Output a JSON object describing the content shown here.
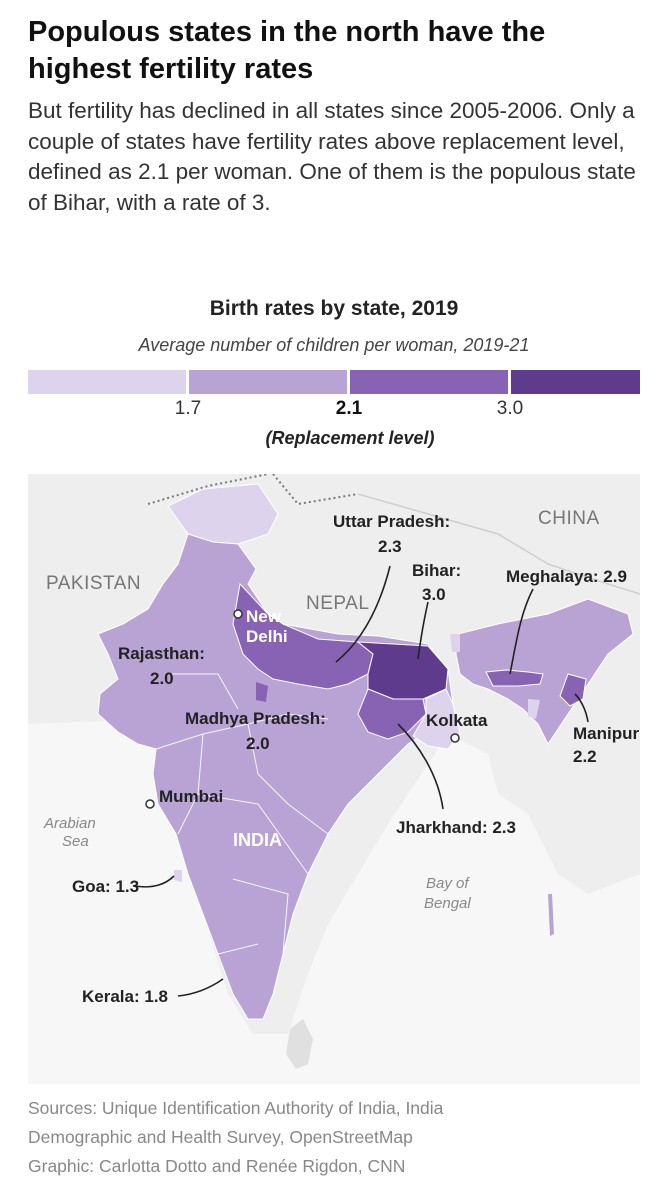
{
  "headline": "Populous states in the north have the highest fertility rates",
  "dek": "But fertility has declined in all states since 2005-2006. Only a couple of states have fertility rates above replacement level, defined as 2.1 per woman. One of them is the populous state of Bihar, with a rate of 3.",
  "legend": {
    "title": "Birth rates by state, 2019",
    "subtitle": "Average number of children per woman, 2019-21",
    "ticks": [
      "1.7",
      "2.1",
      "3.0"
    ],
    "replacement_note": "(Replacement level)",
    "colors": [
      "#ddd3ec",
      "#b8a3d4",
      "#8862b3",
      "#5e3b8c"
    ]
  },
  "map": {
    "countries": {
      "pakistan": "PAKISTAN",
      "china": "CHINA",
      "nepal": "NEPAL",
      "india": "INDIA"
    },
    "water": {
      "arabian_1": "Arabian",
      "arabian_2": "Sea",
      "bay_1": "Bay of",
      "bay_2": "Bengal"
    },
    "cities": {
      "new_delhi_1": "New",
      "new_delhi_2": "Delhi",
      "mumbai": "Mumbai",
      "kolkata": "Kolkata"
    },
    "states": {
      "uttar_pradesh": {
        "name": "Uttar Pradesh:",
        "value": "2.3"
      },
      "bihar": {
        "name": "Bihar:",
        "value": "3.0"
      },
      "meghalaya": {
        "label": "Meghalaya: 2.9"
      },
      "rajasthan": {
        "name": "Rajasthan:",
        "value": "2.0"
      },
      "madhya_pradesh": {
        "name": "Madhya Pradesh:",
        "value": "2.0"
      },
      "manipur": {
        "name": "Manipur",
        "value": "2.2"
      },
      "jharkhand": {
        "label": "Jharkhand: 2.3"
      },
      "goa": {
        "label": "Goa: 1.3"
      },
      "kerala": {
        "label": "Kerala: 1.8"
      }
    }
  },
  "sources": {
    "line1": "Sources: Unique Identification Authority of India, India",
    "line2": "Demographic and Health Survey, OpenStreetMap",
    "line3": "Graphic: Carlotta Dotto and Renée Rigdon, CNN"
  }
}
